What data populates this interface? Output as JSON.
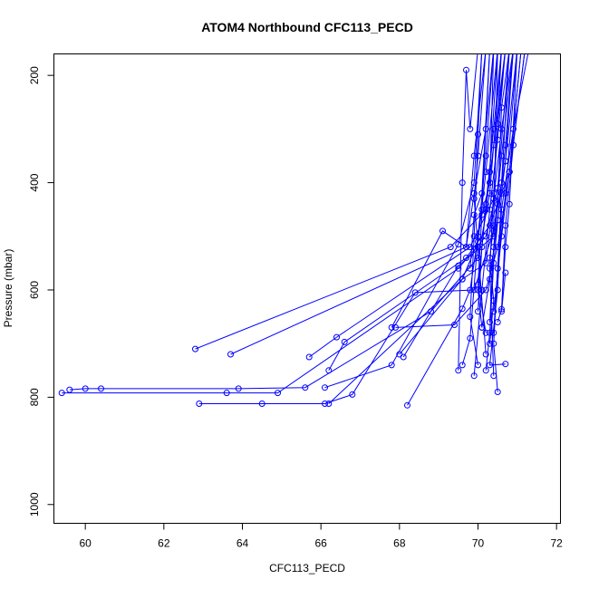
{
  "chart_data": {
    "type": "line",
    "title": "ATOM4 Northbound CFC113_PECD",
    "xlabel": "CFC113_PECD",
    "ylabel": "Pressure (mbar)",
    "xlim": [
      59.2,
      72.1
    ],
    "ylim": [
      1035,
      160
    ],
    "y_reversed": true,
    "x_ticks": [
      60,
      62,
      64,
      66,
      68,
      70,
      72
    ],
    "y_ticks": [
      200,
      400,
      600,
      800,
      1000
    ],
    "grid": false,
    "legend": "none",
    "series_color": "#0000ff",
    "marker": "open-circle",
    "series": [
      {
        "points": [
          [
            70.4,
            150
          ],
          [
            70.2,
            300
          ],
          [
            69.9,
            420
          ],
          [
            69.7,
            520
          ],
          [
            63.7,
            720
          ]
        ]
      },
      {
        "points": [
          [
            70.7,
            150
          ],
          [
            70.4,
            330
          ],
          [
            70.2,
            450
          ],
          [
            69.3,
            520
          ],
          [
            62.8,
            710
          ]
        ]
      },
      {
        "points": [
          [
            70.9,
            150
          ],
          [
            70.6,
            300
          ],
          [
            70.4,
            430
          ],
          [
            69.8,
            520
          ],
          [
            66.4,
            688
          ],
          [
            65.7,
            725
          ]
        ]
      },
      {
        "points": [
          [
            71.2,
            150
          ],
          [
            70.8,
            380
          ],
          [
            70.3,
            480
          ],
          [
            69.7,
            540
          ],
          [
            66.6,
            697
          ],
          [
            66.2,
            750
          ]
        ]
      },
      {
        "points": [
          [
            70.1,
            150
          ],
          [
            69.9,
            400
          ],
          [
            69.5,
            515
          ],
          [
            67.8,
            740
          ],
          [
            66.1,
            782
          ]
        ]
      },
      {
        "points": [
          [
            70.6,
            150
          ],
          [
            70.3,
            420
          ],
          [
            70.0,
            540
          ],
          [
            68.8,
            640
          ],
          [
            65.6,
            782
          ],
          [
            63.9,
            784
          ],
          [
            60.4,
            784
          ],
          [
            60.0,
            784
          ],
          [
            59.6,
            786
          ]
        ]
      },
      {
        "points": [
          [
            70.8,
            150
          ],
          [
            70.5,
            410
          ],
          [
            70.2,
            500
          ],
          [
            69.5,
            560
          ],
          [
            64.9,
            792
          ],
          [
            63.6,
            792
          ],
          [
            59.4,
            792
          ]
        ]
      },
      {
        "points": [
          [
            71.0,
            150
          ],
          [
            70.7,
            360
          ],
          [
            70.4,
            490
          ],
          [
            69.9,
            600
          ],
          [
            68.4,
            605
          ],
          [
            66.8,
            795
          ],
          [
            66.1,
            812
          ],
          [
            64.5,
            812
          ],
          [
            62.9,
            812
          ]
        ]
      },
      {
        "points": [
          [
            70.5,
            150
          ],
          [
            70.2,
            380
          ],
          [
            70.0,
            510
          ],
          [
            69.6,
            580
          ],
          [
            66.2,
            812
          ]
        ]
      },
      {
        "points": [
          [
            70.3,
            150
          ],
          [
            70.1,
            450
          ],
          [
            69.8,
            600
          ],
          [
            69.6,
            635
          ],
          [
            68.2,
            815
          ]
        ]
      },
      {
        "points": [
          [
            70.2,
            150
          ],
          [
            69.9,
            350
          ],
          [
            69.7,
            520
          ],
          [
            69.1,
            490
          ],
          [
            67.8,
            670
          ]
        ]
      },
      {
        "points": [
          [
            70.9,
            150
          ],
          [
            70.6,
            350
          ],
          [
            70.4,
            500
          ],
          [
            69.5,
            555
          ],
          [
            68.1,
            725
          ]
        ]
      },
      {
        "points": [
          [
            70.6,
            150
          ],
          [
            70.4,
            430
          ],
          [
            70.2,
            550
          ],
          [
            69.6,
            580
          ],
          [
            68.0,
            720
          ]
        ]
      },
      {
        "points": [
          [
            71.1,
            150
          ],
          [
            70.8,
            380
          ],
          [
            70.5,
            520
          ],
          [
            70.2,
            600
          ],
          [
            69.4,
            665
          ],
          [
            67.9,
            670
          ]
        ]
      },
      {
        "points": [
          [
            70.0,
            150
          ],
          [
            69.8,
            300
          ],
          [
            69.7,
            190
          ],
          [
            69.6,
            400
          ],
          [
            69.5,
            750
          ]
        ]
      },
      {
        "points": [
          [
            70.4,
            150
          ],
          [
            70.2,
            350
          ],
          [
            70.0,
            500
          ],
          [
            69.8,
            690
          ],
          [
            69.6,
            740
          ]
        ]
      },
      {
        "points": [
          [
            70.7,
            150
          ],
          [
            70.5,
            320
          ],
          [
            70.3,
            450
          ],
          [
            70.1,
            600
          ],
          [
            69.9,
            760
          ]
        ]
      },
      {
        "points": [
          [
            71.3,
            150
          ],
          [
            70.9,
            300
          ],
          [
            70.6,
            450
          ],
          [
            70.5,
            600
          ],
          [
            70.3,
            740
          ],
          [
            70.7,
            738
          ]
        ]
      },
      {
        "points": [
          [
            70.8,
            150
          ],
          [
            70.6,
            400
          ],
          [
            70.4,
            550
          ],
          [
            70.3,
            680
          ],
          [
            70.2,
            750
          ]
        ]
      },
      {
        "points": [
          [
            71.0,
            150
          ],
          [
            70.7,
            420
          ],
          [
            70.5,
            560
          ],
          [
            70.4,
            700
          ],
          [
            70.5,
            790
          ]
        ]
      },
      {
        "points": [
          [
            70.3,
            150
          ],
          [
            70.1,
            420
          ],
          [
            69.9,
            460
          ],
          [
            69.8,
            560
          ]
        ]
      },
      {
        "points": [
          [
            70.5,
            150
          ],
          [
            70.3,
            380
          ],
          [
            70.1,
            520
          ],
          [
            70.0,
            640
          ]
        ]
      },
      {
        "points": [
          [
            70.9,
            150
          ],
          [
            70.7,
            330
          ],
          [
            70.5,
            470
          ],
          [
            70.3,
            580
          ],
          [
            70.1,
            670
          ]
        ]
      },
      {
        "points": [
          [
            70.6,
            150
          ],
          [
            70.4,
            300
          ],
          [
            70.2,
            440
          ],
          [
            70.0,
            600
          ],
          [
            70.1,
            670
          ]
        ]
      },
      {
        "points": [
          [
            71.1,
            150
          ],
          [
            70.8,
            380
          ],
          [
            70.8,
            380
          ],
          [
            70.6,
            500
          ],
          [
            70.4,
            640
          ]
        ]
      },
      {
        "points": [
          [
            70.2,
            150
          ],
          [
            70.0,
            350
          ],
          [
            69.9,
            430
          ],
          [
            70.0,
            520
          ],
          [
            70.2,
            720
          ]
        ]
      },
      {
        "points": [
          [
            70.7,
            150
          ],
          [
            70.5,
            290
          ],
          [
            70.4,
            420
          ],
          [
            70.3,
            560
          ],
          [
            70.4,
            760
          ]
        ]
      },
      {
        "points": [
          [
            71.2,
            150
          ],
          [
            70.9,
            330
          ],
          [
            70.7,
            480
          ],
          [
            70.6,
            640
          ],
          [
            70.7,
            568
          ]
        ]
      },
      {
        "points": [
          [
            70.4,
            150
          ],
          [
            70.3,
            400
          ],
          [
            70.1,
            460
          ],
          [
            70.0,
            590
          ],
          [
            70.2,
            680
          ]
        ]
      },
      {
        "points": [
          [
            70.8,
            150
          ],
          [
            70.6,
            260
          ],
          [
            70.5,
            440
          ],
          [
            70.4,
            520
          ],
          [
            70.3,
            660
          ]
        ]
      },
      {
        "points": [
          [
            70.1,
            150
          ],
          [
            70.0,
            310
          ],
          [
            69.9,
            500
          ],
          [
            69.8,
            650
          ],
          [
            70.0,
            740
          ]
        ]
      },
      {
        "points": [
          [
            70.9,
            150
          ],
          [
            70.7,
            360
          ],
          [
            70.6,
            420
          ],
          [
            70.5,
            560
          ],
          [
            70.4,
            680
          ]
        ]
      },
      {
        "points": [
          [
            70.5,
            150
          ],
          [
            70.4,
            480
          ],
          [
            70.3,
            540
          ],
          [
            70.4,
            620
          ],
          [
            70.3,
            700
          ]
        ]
      },
      {
        "points": [
          [
            71.0,
            150
          ],
          [
            70.8,
            440
          ],
          [
            70.7,
            520
          ],
          [
            70.6,
            636
          ],
          [
            70.5,
            660
          ]
        ]
      }
    ]
  }
}
